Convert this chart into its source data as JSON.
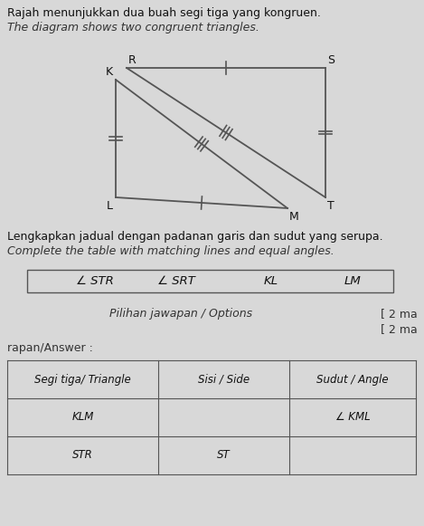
{
  "title_line1": "Rajah menunjukkan dua buah segi tiga yang kongruen.",
  "title_line2": "The diagram shows two congruent triangles.",
  "instruction_line1": "Lengkapkan jadual dengan padanan garis dan sudut yang serupa.",
  "instruction_line2": "Complete the table with matching lines and equal angles.",
  "options_label": "Pilihan jawapan / Options",
  "marks1": "[ 2 ma",
  "marks2": "[ 2 ma",
  "answer_label": "rapan/Answer :",
  "options_box": [
    "∠ STR",
    "∠ SRT",
    "KL",
    "LM"
  ],
  "table2_headers": [
    "Segi tiga/ Triangle",
    "Sisi / Side",
    "Sudut / Angle"
  ],
  "table2_rows": [
    [
      "KLM",
      "",
      "∠ KML"
    ],
    [
      "STR",
      "ST",
      ""
    ]
  ],
  "bg_color": "#d8d8d8",
  "diagram_bg": "#d8d8d8"
}
